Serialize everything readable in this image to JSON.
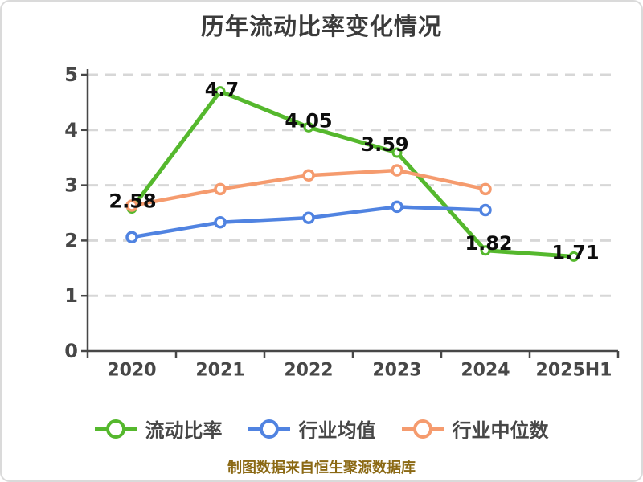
{
  "title": "历年流动比率变化情况",
  "footer": "制图数据来自恒生聚源数据库",
  "colors": {
    "title": "#3b3b3b",
    "axis": "#474747",
    "grid": "#d7d7d7",
    "data_label": "#0d0d0d",
    "footer": "#8b6914",
    "series_green": "#55b82d",
    "series_blue": "#5083e1",
    "series_orange": "#f59b6e"
  },
  "chart_data": {
    "type": "line",
    "title": "历年流动比率变化情况",
    "categories": [
      "2020",
      "2021",
      "2022",
      "2023",
      "2024",
      "2025H1"
    ],
    "series": [
      {
        "name": "流动比率",
        "color": "#55b82d",
        "values": [
          2.58,
          4.7,
          4.05,
          3.59,
          1.82,
          1.71
        ],
        "labels": [
          "2.58",
          "4.7",
          "4.05",
          "3.59",
          "1.82",
          "1.71"
        ]
      },
      {
        "name": "行业均值",
        "color": "#5083e1",
        "values": [
          2.06,
          2.33,
          2.41,
          2.61,
          2.55
        ],
        "labels": []
      },
      {
        "name": "行业中位数",
        "color": "#f59b6e",
        "values": [
          2.63,
          2.93,
          3.18,
          3.27,
          2.93
        ],
        "labels": []
      }
    ],
    "xlabel": "",
    "ylabel": "",
    "ylim": [
      0,
      5
    ],
    "y_ticks": [
      0,
      1,
      2,
      3,
      4,
      5
    ],
    "grid": "horizontal-dashed",
    "legend_position": "bottom",
    "marker": "circle-white-fill",
    "note": "制图数据来自恒生聚源数据库"
  }
}
